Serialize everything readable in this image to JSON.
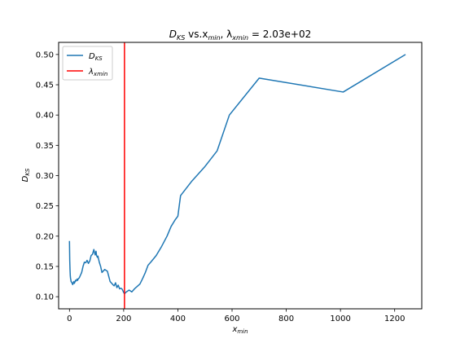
{
  "chart_data": {
    "type": "line",
    "title": {
      "prefix": "D",
      "prefix_sub": "KS",
      "middle": " vs.x",
      "middle_sub": "min",
      "sep": ",  λ",
      "lambda_sub": "xmin",
      "suffix": " = 2.03e+02"
    },
    "xlabel": {
      "main": "x",
      "sub": "min"
    },
    "ylabel": {
      "main": "D",
      "sub": "KS"
    },
    "xlim": [
      -40,
      1300
    ],
    "ylim": [
      0.08,
      0.52
    ],
    "xticks": [
      0,
      200,
      400,
      600,
      800,
      1000,
      1200
    ],
    "yticks": [
      0.1,
      0.15,
      0.2,
      0.25,
      0.3,
      0.35,
      0.4,
      0.45,
      0.5
    ],
    "grid": false,
    "legend_position": "upper left",
    "series": [
      {
        "name": "D_KS",
        "legend_main": "D",
        "legend_sub": "KS",
        "kind": "line",
        "color": "#1f77b4",
        "x": [
          0,
          1,
          2,
          3,
          4,
          5,
          6,
          8,
          10,
          12,
          14,
          16,
          18,
          20,
          22,
          25,
          28,
          30,
          33,
          36,
          40,
          45,
          50,
          55,
          60,
          65,
          70,
          75,
          80,
          85,
          90,
          93,
          95,
          98,
          100,
          103,
          105,
          110,
          115,
          120,
          130,
          140,
          150,
          160,
          165,
          170,
          175,
          180,
          185,
          190,
          195,
          200,
          203,
          210,
          220,
          230,
          240,
          260,
          270,
          280,
          290,
          300,
          320,
          340,
          360,
          375,
          390,
          400,
          410,
          450,
          500,
          545,
          590,
          700,
          1010,
          1240
        ],
        "y": [
          0.192,
          0.16,
          0.145,
          0.135,
          0.13,
          0.128,
          0.125,
          0.124,
          0.122,
          0.12,
          0.123,
          0.125,
          0.122,
          0.124,
          0.127,
          0.126,
          0.129,
          0.127,
          0.13,
          0.131,
          0.135,
          0.14,
          0.15,
          0.157,
          0.156,
          0.16,
          0.155,
          0.159,
          0.168,
          0.17,
          0.178,
          0.172,
          0.169,
          0.175,
          0.168,
          0.165,
          0.167,
          0.157,
          0.15,
          0.14,
          0.145,
          0.142,
          0.125,
          0.12,
          0.118,
          0.123,
          0.115,
          0.119,
          0.113,
          0.114,
          0.112,
          0.107,
          0.105,
          0.108,
          0.111,
          0.108,
          0.113,
          0.121,
          0.13,
          0.14,
          0.152,
          0.157,
          0.168,
          0.183,
          0.2,
          0.216,
          0.227,
          0.233,
          0.267,
          0.29,
          0.315,
          0.341,
          0.4,
          0.461,
          0.438,
          0.5
        ]
      },
      {
        "name": "λ_xmin",
        "legend_main": "λ",
        "legend_sub": "xmin",
        "kind": "vline",
        "color": "#ff0000",
        "x": 203
      }
    ]
  }
}
